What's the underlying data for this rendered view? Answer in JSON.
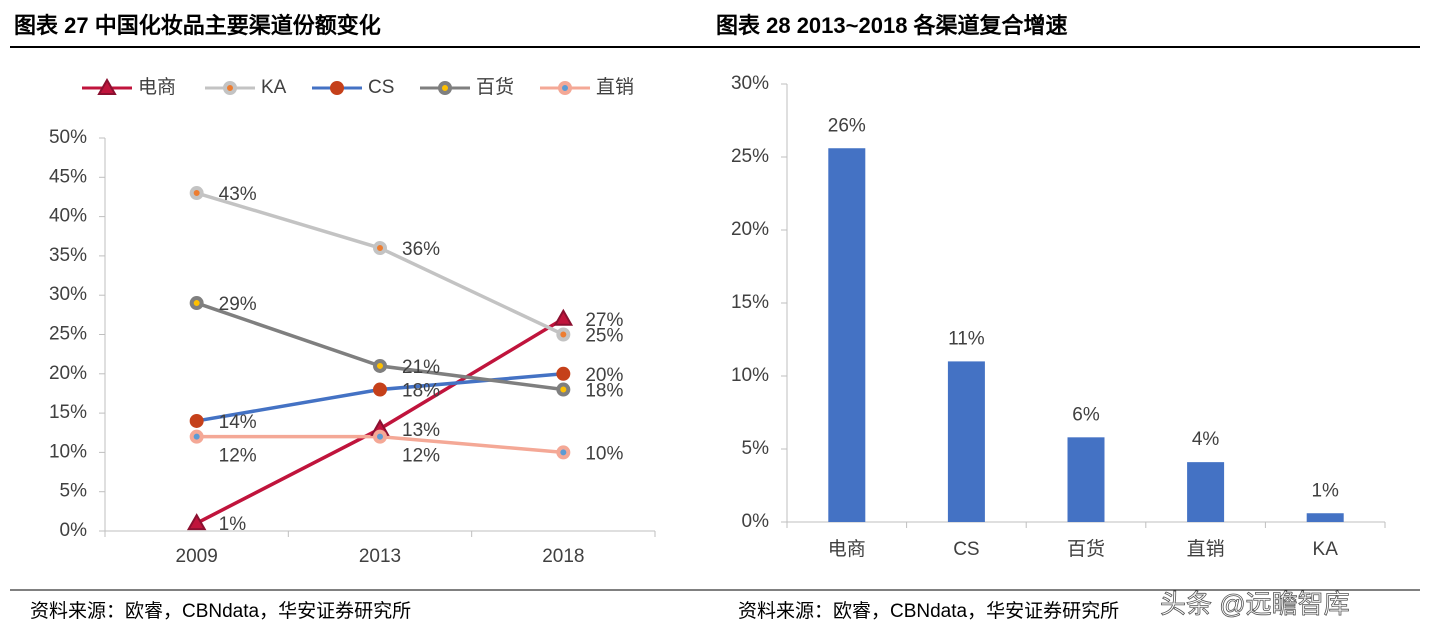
{
  "chart_data": [
    {
      "type": "line",
      "title": "图表 27 中国化妆品主要渠道份额变化",
      "categories": [
        "2009",
        "2013",
        "2018"
      ],
      "series": [
        {
          "name": "电商",
          "color": "#c0143c",
          "marker_color": "#c0143c",
          "values": [
            1,
            13,
            27
          ],
          "value_labels": [
            "1%",
            "13%",
            "27%"
          ]
        },
        {
          "name": "KA",
          "color": "#c3c3c3",
          "marker_color": "#ed7d31",
          "values": [
            43,
            36,
            25
          ],
          "value_labels": [
            "43%",
            "36%",
            "25%"
          ]
        },
        {
          "name": "CS",
          "color": "#4472c4",
          "marker_color": "#c5401a",
          "values": [
            14,
            18,
            20
          ],
          "value_labels": [
            "14%",
            "18%",
            "20%"
          ]
        },
        {
          "name": "百货",
          "color": "#7f7f7f",
          "marker_color": "#ffc000",
          "values": [
            29,
            21,
            18
          ],
          "value_labels": [
            "29%",
            "21%",
            "18%"
          ]
        },
        {
          "name": "直销",
          "color": "#f4a896",
          "marker_color": "#5b9bd5",
          "values": [
            12,
            12,
            10
          ],
          "value_labels": [
            "12%",
            "12%",
            "10%"
          ]
        }
      ],
      "ylim": [
        0,
        50
      ],
      "yticks": [
        {
          "value": 0,
          "label": "0%"
        },
        {
          "value": 5,
          "label": "5%"
        },
        {
          "value": 10,
          "label": "10%"
        },
        {
          "value": 15,
          "label": "15%"
        },
        {
          "value": 20,
          "label": "20%"
        },
        {
          "value": 25,
          "label": "25%"
        },
        {
          "value": 30,
          "label": "30%"
        },
        {
          "value": 35,
          "label": "35%"
        },
        {
          "value": 40,
          "label": "40%"
        },
        {
          "value": 45,
          "label": "45%"
        },
        {
          "value": 50,
          "label": "50%"
        }
      ],
      "grid": false,
      "legend": "top",
      "source": "资料来源：欧睿，CBNdata，华安证券研究所"
    },
    {
      "type": "bar",
      "title": "图表 28 2013~2018 各渠道复合增速",
      "categories": [
        "电商",
        "CS",
        "百货",
        "直销",
        "KA"
      ],
      "values": [
        25.6,
        11,
        5.8,
        4.1,
        0.6
      ],
      "value_labels": [
        "26%",
        "11%",
        "6%",
        "4%",
        "1%"
      ],
      "color": "#4472c4",
      "ylim": [
        0,
        30
      ],
      "yticks": [
        {
          "value": 0,
          "label": "0%"
        },
        {
          "value": 5,
          "label": "5%"
        },
        {
          "value": 10,
          "label": "10%"
        },
        {
          "value": 15,
          "label": "15%"
        },
        {
          "value": 20,
          "label": "20%"
        },
        {
          "value": 25,
          "label": "25%"
        },
        {
          "value": 30,
          "label": "30%"
        }
      ],
      "grid": false,
      "source": "资料来源：欧睿，CBNdata，华安证券研究所"
    }
  ],
  "watermark": "头条 @远瞻智库"
}
